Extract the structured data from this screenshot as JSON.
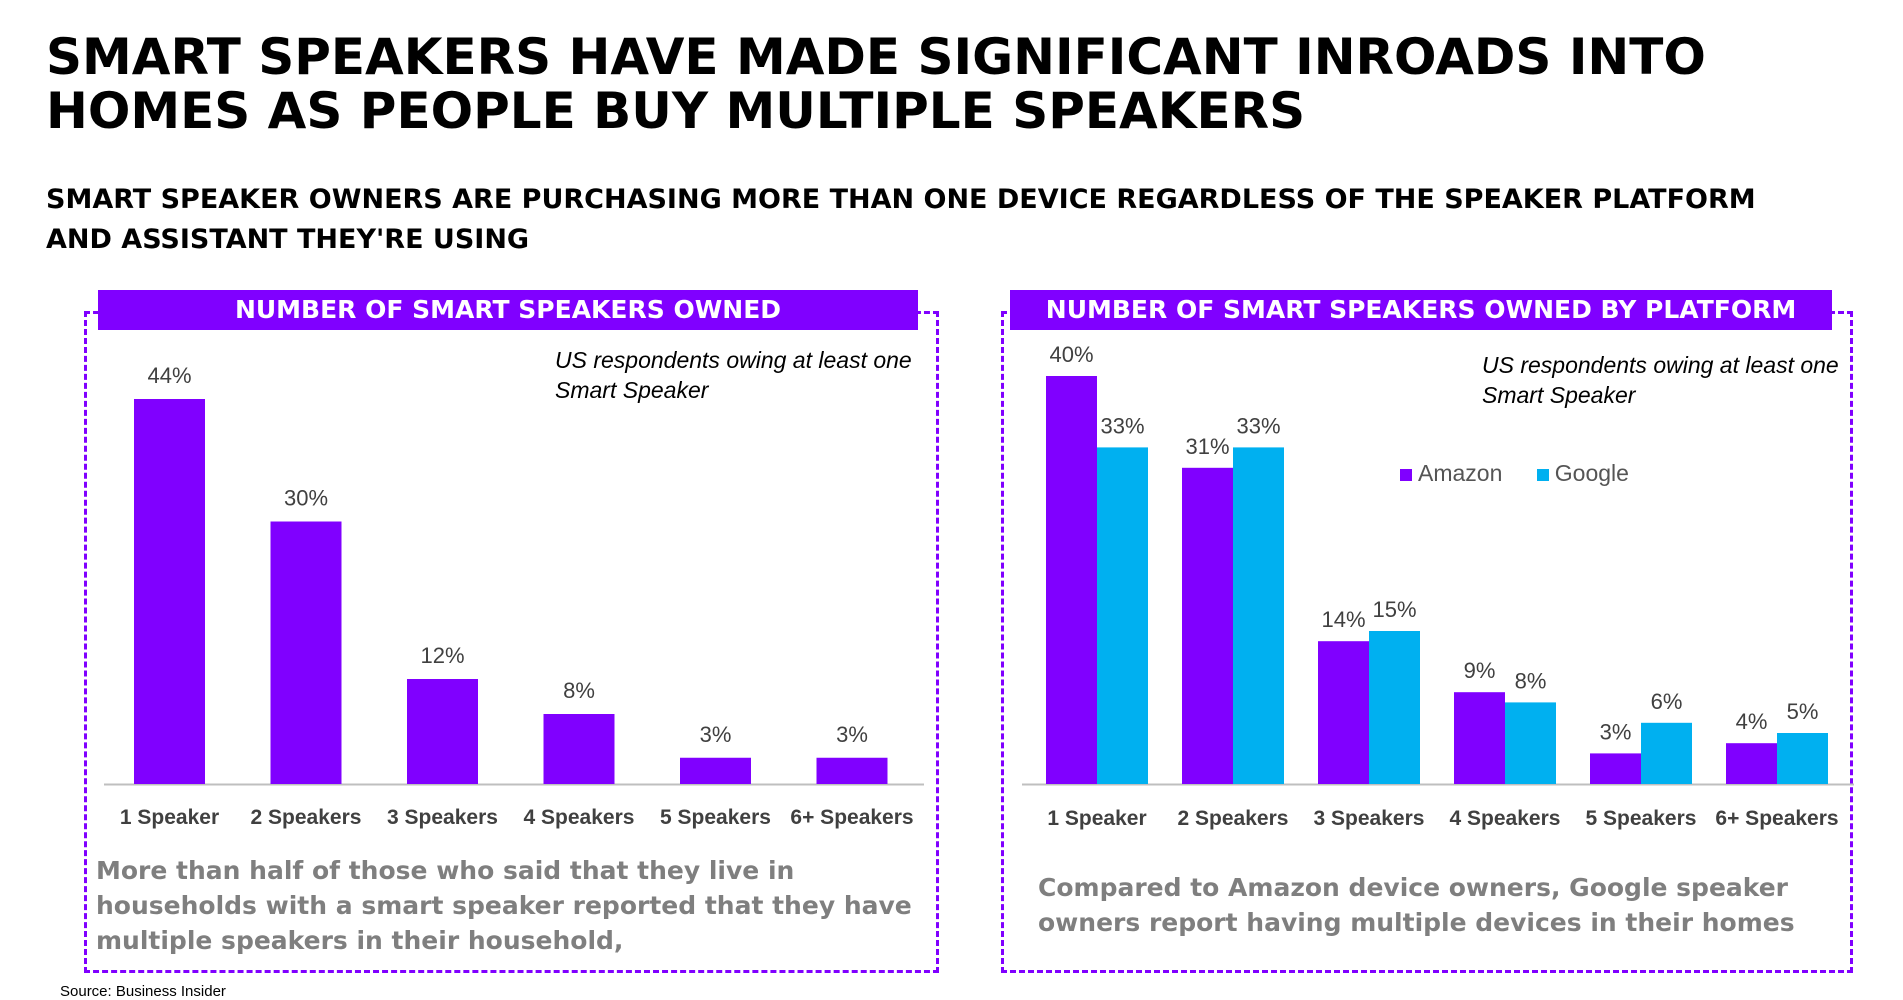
{
  "title": "SMART SPEAKERS HAVE MADE SIGNIFICANT INROADS INTO HOMES AS PEOPLE BUY MULTIPLE SPEAKERS",
  "subtitle": "SMART SPEAKER OWNERS ARE PURCHASING MORE THAN ONE DEVICE REGARDLESS OF THE SPEAKER PLATFORM AND ASSISTANT THEY'RE USING",
  "left_panel": {
    "header": "NUMBER OF SMART SPEAKERS OWNED",
    "note": "US respondents owing at least one Smart Speaker",
    "caption": "More than half of those who said that they live in households with a smart speaker reported that they have multiple speakers in their household,"
  },
  "right_panel": {
    "header": "NUMBER OF SMART SPEAKERS OWNED  BY PLATFORM",
    "note": "US respondents owing at least one Smart Speaker",
    "caption": "Compared to Amazon device owners, Google speaker owners report having multiple devices in their homes"
  },
  "source": "Source: Business Insider",
  "colors": {
    "amazon": "#8000ff",
    "google": "#00b0f0",
    "axis": "#bfbfbf",
    "label": "#404040"
  },
  "chart_data": [
    {
      "type": "bar",
      "title": "NUMBER OF SMART SPEAKERS OWNED",
      "categories": [
        "1 Speaker",
        "2 Speakers",
        "3 Speakers",
        "4 Speakers",
        "5 Speakers",
        "6+ Speakers"
      ],
      "values": [
        44,
        30,
        12,
        8,
        3,
        3
      ],
      "data_labels": [
        "44%",
        "30%",
        "12%",
        "8%",
        "3%",
        "3%"
      ],
      "ylim": [
        0,
        50
      ],
      "grid": false
    },
    {
      "type": "bar",
      "title": "NUMBER OF SMART SPEAKERS OWNED  BY PLATFORM",
      "categories": [
        "1 Speaker",
        "2 Speakers",
        "3 Speakers",
        "4 Speakers",
        "5 Speakers",
        "6+ Speakers"
      ],
      "series": [
        {
          "name": "Amazon",
          "values": [
            40,
            31,
            14,
            9,
            3,
            4
          ],
          "data_labels": [
            "40%",
            "31%",
            "14%",
            "9%",
            "3%",
            "4%"
          ]
        },
        {
          "name": "Google",
          "values": [
            33,
            33,
            15,
            8,
            6,
            5
          ],
          "data_labels": [
            "33%",
            "33%",
            "15%",
            "8%",
            "6%",
            "5%"
          ]
        }
      ],
      "legend": "top-right",
      "ylim": [
        0,
        45
      ],
      "grid": false
    }
  ]
}
